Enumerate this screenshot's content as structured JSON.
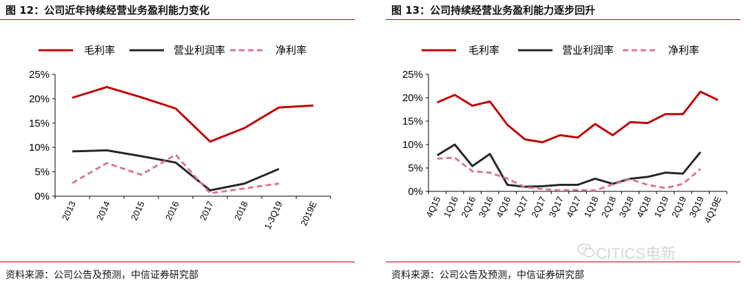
{
  "colors": {
    "gross": "#c00000",
    "op": "#262626",
    "net": "#d9788f",
    "rule": "#c00000"
  },
  "watermark": {
    "text": "CITICS电新",
    "icon": "wechat-icon"
  },
  "chart_data": [
    {
      "type": "line",
      "title": "图 12：公司近年持续经营业务盈利能力变化",
      "source": "资料来源：公司公告及预测，中信证券研究部",
      "categories": [
        "2013",
        "2014",
        "2015",
        "2016",
        "2017",
        "2018",
        "1-3Q19",
        "2019E"
      ],
      "ylim": [
        0,
        25
      ],
      "yticks": [
        "0%",
        "5%",
        "10%",
        "15%",
        "20%",
        "25%"
      ],
      "legend_position": "top",
      "series": [
        {
          "name": "毛利率",
          "style": "solid",
          "color_key": "gross",
          "values": [
            20.2,
            22.4,
            20.3,
            18.0,
            11.2,
            14.0,
            18.2,
            18.6
          ]
        },
        {
          "name": "营业利润率",
          "style": "solid",
          "color_key": "op",
          "values": [
            9.2,
            9.4,
            8.2,
            6.9,
            1.2,
            2.6,
            5.6,
            null
          ]
        },
        {
          "name": "净利率",
          "style": "dashed",
          "color_key": "net",
          "values": [
            2.7,
            6.8,
            4.4,
            8.5,
            0.6,
            1.6,
            2.6,
            null
          ]
        }
      ]
    },
    {
      "type": "line",
      "title": "图 13：公司持续经营业务盈利能力逐步回升",
      "source": "资料来源：公司公告及预测，中信证券研究部",
      "categories": [
        "4Q15",
        "1Q16",
        "2Q16",
        "3Q16",
        "4Q16",
        "1Q17",
        "2Q17",
        "3Q17",
        "4Q17",
        "1Q18",
        "2Q18",
        "3Q18",
        "4Q18",
        "1Q19",
        "2Q19",
        "3Q19",
        "4Q19E"
      ],
      "ylim": [
        0,
        25
      ],
      "yticks": [
        "0%",
        "5%",
        "10%",
        "15%",
        "20%",
        "25%"
      ],
      "legend_position": "top",
      "series": [
        {
          "name": "毛利率",
          "style": "solid",
          "color_key": "gross",
          "values": [
            19.0,
            20.6,
            18.3,
            19.2,
            14.2,
            11.1,
            10.5,
            12.0,
            11.5,
            14.4,
            12.0,
            14.8,
            14.6,
            16.5,
            16.5,
            21.3,
            19.5
          ]
        },
        {
          "name": "营业利润率",
          "style": "solid",
          "color_key": "op",
          "values": [
            7.7,
            10.0,
            5.4,
            8.0,
            1.4,
            1.0,
            1.1,
            1.4,
            1.4,
            2.7,
            1.6,
            2.7,
            3.1,
            4.0,
            3.8,
            8.4,
            null
          ]
        },
        {
          "name": "净利率",
          "style": "dashed",
          "color_key": "net",
          "values": [
            7.0,
            7.2,
            4.3,
            4.0,
            2.7,
            0.9,
            0.5,
            0.2,
            0.3,
            0.2,
            1.5,
            2.6,
            1.4,
            0.7,
            1.6,
            4.8,
            null
          ]
        }
      ]
    }
  ]
}
